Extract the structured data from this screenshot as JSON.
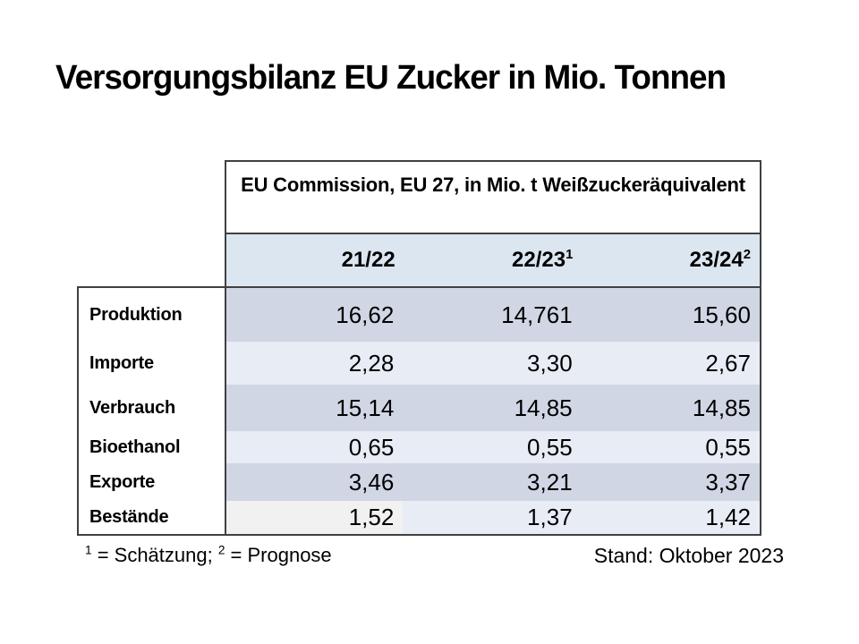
{
  "slide": {
    "title": "Versorgungsbilanz EU Zucker in Mio. Tonnen"
  },
  "table": {
    "header": "EU Commission, EU 27, in Mio. t Weißzuckeräquivalent",
    "columns": [
      {
        "label": "21/22",
        "sup": ""
      },
      {
        "label": "22/23",
        "sup": "1"
      },
      {
        "label": "23/24",
        "sup": "2"
      }
    ],
    "rows": [
      {
        "label": "Produktion",
        "values": [
          "16,62",
          "14,761",
          "15,60"
        ]
      },
      {
        "label": "Importe",
        "values": [
          "2,28",
          "3,30",
          "2,67"
        ]
      },
      {
        "label": "Verbrauch",
        "values": [
          "15,14",
          "14,85",
          "14,85"
        ]
      },
      {
        "label": "Bioethanol",
        "values": [
          "0,65",
          "0,55",
          "0,55"
        ]
      },
      {
        "label": "Exporte",
        "values": [
          "3,46",
          "3,21",
          "3,37"
        ]
      },
      {
        "label": "Bestände",
        "values": [
          "1,52",
          "1,37",
          "1,42"
        ]
      }
    ]
  },
  "footnote": {
    "sup1": "1",
    "text1": " = Schätzung; ",
    "sup2": "2",
    "text2": " = Prognose"
  },
  "status": {
    "date_label": "Stand: Oktober 2023"
  },
  "colors": {
    "column_header_bg": "#dce6f1",
    "row_band_dark": "#d0d6e4",
    "row_band_light": "#e8ecf5",
    "bestaende_first_cell_bg": "#f1f1f1",
    "table_border": "#404040",
    "text": "#000000"
  }
}
